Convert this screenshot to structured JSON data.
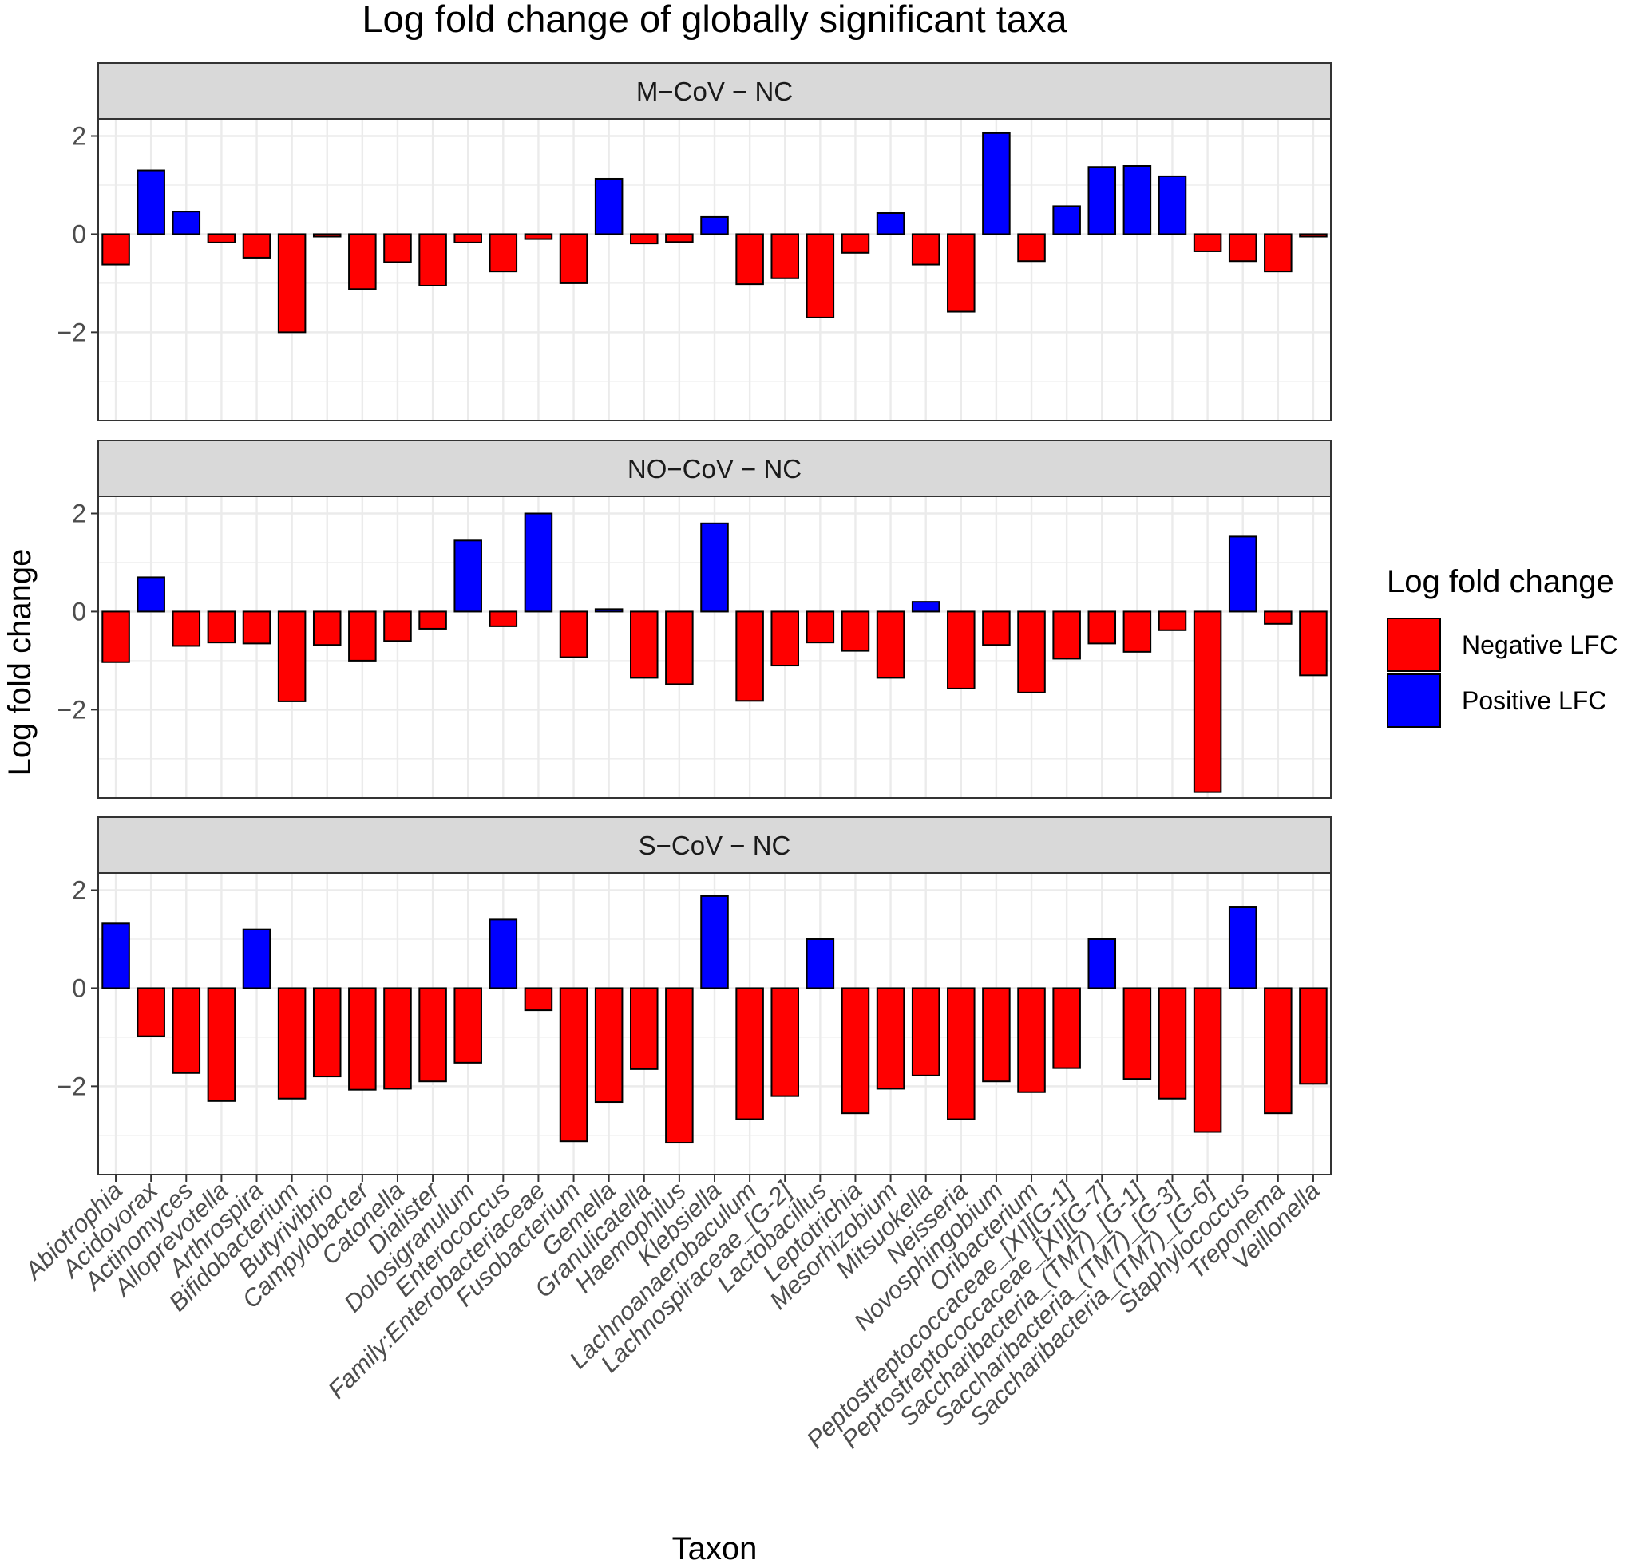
{
  "chart_data": {
    "type": "bar",
    "title": "Log fold change of globally significant taxa",
    "xlabel": "Taxon",
    "ylabel": "Log fold change",
    "ylim": [
      -3.8,
      2.35
    ],
    "yticks": [
      -2,
      0,
      2
    ],
    "grid": true,
    "categories": [
      "Abiotrophia",
      "Acidovorax",
      "Actinomyces",
      "Alloprevotella",
      "Arthrospira",
      "Bifidobacterium",
      "Butyrivibrio",
      "Campylobacter",
      "Catonella",
      "Dialister",
      "Dolosigranulum",
      "Enterococcus",
      "Family:Enterobacteriaceae",
      "Fusobacterium",
      "Gemella",
      "Granulicatella",
      "Haemophilus",
      "Klebsiella",
      "Lachnoanaerobaculum",
      "Lachnospiraceae_[G-2]",
      "Lactobacillus",
      "Leptotrichia",
      "Mesorhizobium",
      "Mitsuokella",
      "Neisseria",
      "Novosphingobium",
      "Oribacterium",
      "Peptostreptococcaceae_[XI][G-1]",
      "Peptostreptococcaceae_[XI][G-7]",
      "Saccharibacteria_(TM7)_[G-1]",
      "Saccharibacteria_(TM7)_[G-3]",
      "Saccharibacteria_(TM7)_[G-6]",
      "Staphylococcus",
      "Treponema",
      "Veillonella"
    ],
    "series": [
      {
        "name": "M−CoV − NC",
        "values": [
          -0.62,
          1.3,
          0.46,
          -0.17,
          -0.48,
          -2.0,
          -0.05,
          -1.12,
          -0.57,
          -1.05,
          -0.17,
          -0.76,
          -0.1,
          -1.0,
          1.13,
          -0.19,
          -0.16,
          0.35,
          -1.02,
          -0.9,
          -1.7,
          -0.38,
          0.43,
          -0.62,
          -1.58,
          2.06,
          -0.55,
          0.57,
          1.37,
          1.39,
          1.18,
          -0.35,
          -0.55,
          -0.76,
          -0.05
        ]
      },
      {
        "name": "NO−CoV − NC",
        "values": [
          -1.03,
          0.7,
          -0.7,
          -0.63,
          -0.65,
          -1.83,
          -0.68,
          -1.0,
          -0.6,
          -0.35,
          1.45,
          -0.3,
          2.0,
          -0.93,
          0.05,
          -1.35,
          -1.48,
          1.8,
          -1.82,
          -1.1,
          -0.63,
          -0.8,
          -1.35,
          0.2,
          -1.57,
          -0.68,
          -1.65,
          -0.96,
          -0.65,
          -0.82,
          -0.38,
          -3.68,
          1.53,
          -0.25,
          -1.3
        ]
      },
      {
        "name": "S−CoV − NC",
        "values": [
          1.32,
          -0.98,
          -1.73,
          -2.3,
          1.2,
          -2.25,
          -1.8,
          -2.07,
          -2.05,
          -1.9,
          -1.52,
          1.4,
          -0.45,
          -3.12,
          -2.32,
          -1.65,
          -3.15,
          1.88,
          -2.67,
          -2.2,
          1.0,
          -2.55,
          -2.05,
          -1.78,
          -2.67,
          -1.9,
          -2.12,
          -1.63,
          1.0,
          -1.85,
          -2.25,
          -2.93,
          1.65,
          -2.55,
          -1.95
        ]
      }
    ],
    "legend": {
      "title": "Log fold change",
      "position": "right",
      "items": [
        {
          "label": "Negative LFC",
          "color": "#ff0000"
        },
        {
          "label": "Positive LFC",
          "color": "#0000ff"
        }
      ]
    },
    "colors": {
      "negative": "#ff0000",
      "positive": "#0000ff",
      "strip": "#d9d9d9",
      "grid": "#ebebeb"
    }
  }
}
